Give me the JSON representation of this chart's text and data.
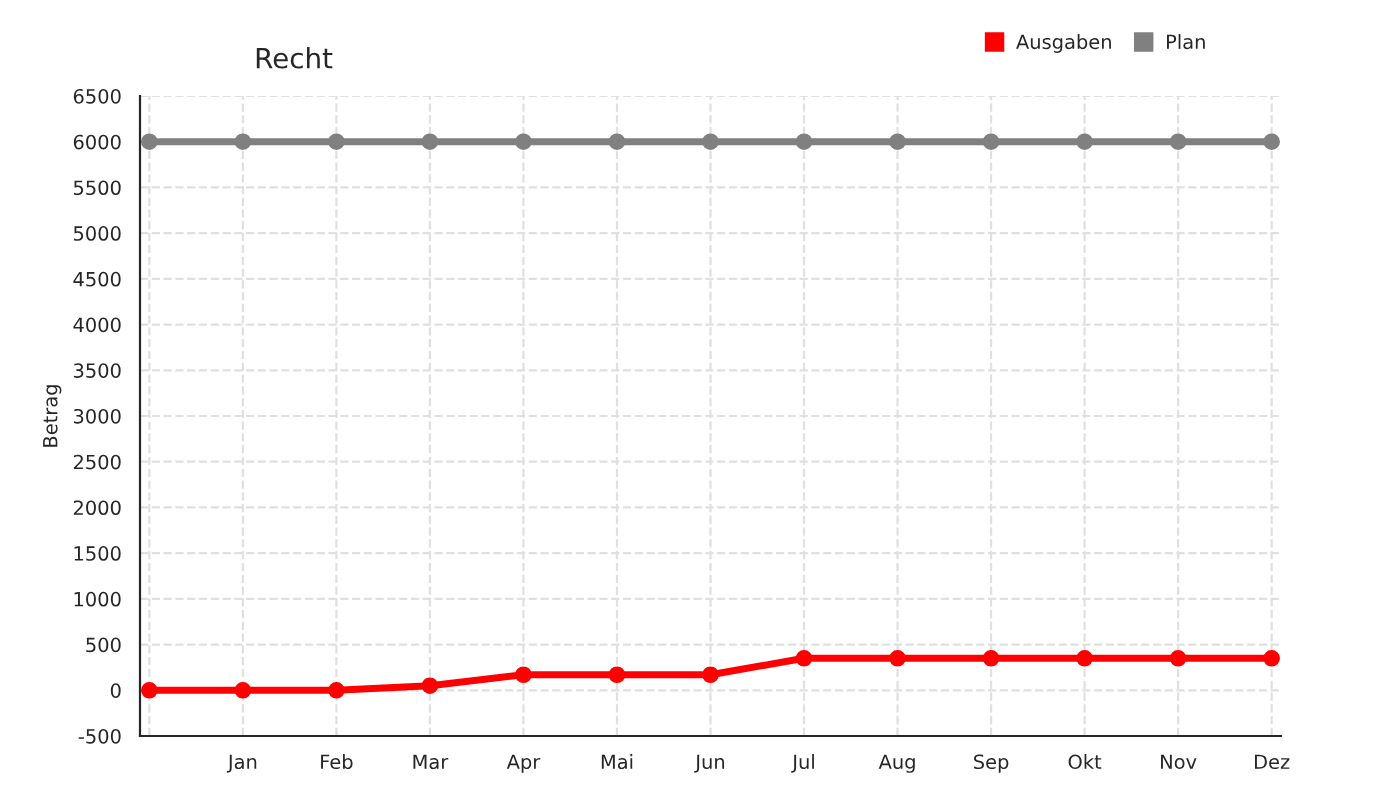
{
  "chart_data": {
    "type": "line",
    "title": "Recht",
    "ylabel": "Betrag",
    "categories": [
      null,
      "Jan",
      "Feb",
      "Mar",
      "Apr",
      "Mai",
      "Jun",
      "Jul",
      "Aug",
      "Sep",
      "Okt",
      "Nov",
      "Dez"
    ],
    "series": [
      {
        "name": "Ausgaben",
        "color": "#ff0000",
        "values": [
          0,
          0,
          0,
          50,
          170,
          170,
          170,
          350,
          350,
          350,
          350,
          350,
          350
        ]
      },
      {
        "name": "Plan",
        "color": "#808080",
        "values": [
          6000,
          6000,
          6000,
          6000,
          6000,
          6000,
          6000,
          6000,
          6000,
          6000,
          6000,
          6000,
          6000
        ]
      }
    ],
    "ylim": [
      -500,
      6500
    ],
    "yticks": [
      -500,
      0,
      500,
      1000,
      1500,
      2000,
      2500,
      3000,
      3500,
      4000,
      4500,
      5000,
      5500,
      6000,
      6500
    ],
    "grid": true,
    "legend": "top right",
    "marker": "circle",
    "line_style": "solid"
  }
}
